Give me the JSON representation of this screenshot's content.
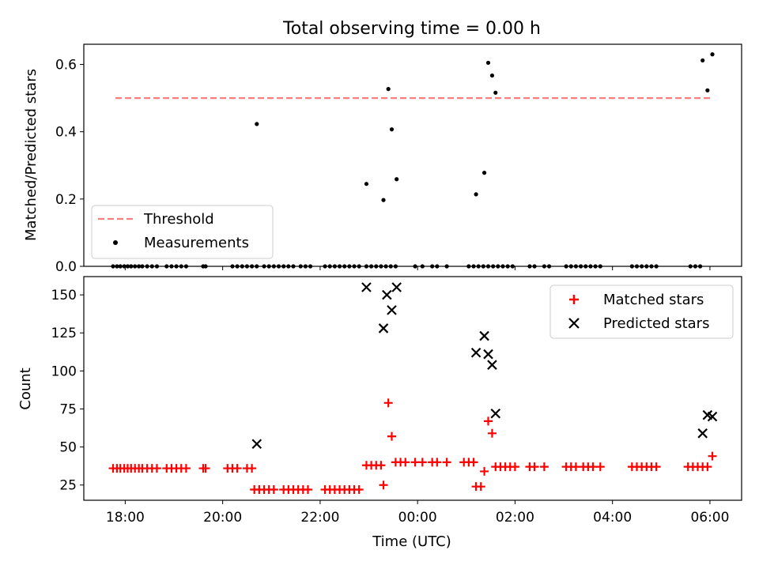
{
  "title": "Total observing time = 0.00 h",
  "chart_data": [
    {
      "type": "scatter",
      "panel": "top",
      "ylabel": "Matched/Predicted stars",
      "xlabel": "",
      "ylim": [
        0,
        0.66
      ],
      "yticks": [
        0.0,
        0.2,
        0.4,
        0.6
      ],
      "ytick_labels": [
        "0.0",
        "0.2",
        "0.4",
        "0.6"
      ],
      "threshold": {
        "name": "Threshold",
        "value": 0.5,
        "x_start": -0.2,
        "x_end": 12.05,
        "color": "#f87f7f",
        "style": "dashed"
      },
      "series": [
        {
          "name": "Measurements",
          "color": "#000000",
          "marker": "dot",
          "points": [
            [
              -0.25,
              0
            ],
            [
              -0.17,
              0
            ],
            [
              -0.1,
              0
            ],
            [
              -0.02,
              0
            ],
            [
              0.05,
              0
            ],
            [
              0.12,
              0
            ],
            [
              0.2,
              0
            ],
            [
              0.28,
              0
            ],
            [
              0.35,
              0
            ],
            [
              0.45,
              0
            ],
            [
              0.55,
              0
            ],
            [
              0.65,
              0
            ],
            [
              0.85,
              0
            ],
            [
              0.95,
              0
            ],
            [
              1.05,
              0
            ],
            [
              1.15,
              0
            ],
            [
              1.25,
              0
            ],
            [
              1.6,
              0
            ],
            [
              1.65,
              0
            ],
            [
              2.2,
              0
            ],
            [
              2.3,
              0
            ],
            [
              2.4,
              0
            ],
            [
              2.5,
              0
            ],
            [
              2.6,
              0
            ],
            [
              2.7,
              0
            ],
            [
              2.85,
              0
            ],
            [
              2.95,
              0
            ],
            [
              3.05,
              0
            ],
            [
              3.15,
              0
            ],
            [
              3.25,
              0
            ],
            [
              3.35,
              0
            ],
            [
              3.45,
              0
            ],
            [
              3.6,
              0
            ],
            [
              3.7,
              0
            ],
            [
              3.8,
              0
            ],
            [
              4.1,
              0
            ],
            [
              4.2,
              0
            ],
            [
              4.3,
              0
            ],
            [
              4.4,
              0
            ],
            [
              4.5,
              0
            ],
            [
              4.6,
              0
            ],
            [
              4.7,
              0
            ],
            [
              4.8,
              0
            ],
            [
              4.95,
              0
            ],
            [
              5.05,
              0
            ],
            [
              5.15,
              0
            ],
            [
              5.25,
              0
            ],
            [
              5.35,
              0
            ],
            [
              5.45,
              0
            ],
            [
              5.55,
              0
            ],
            [
              5.95,
              0
            ],
            [
              6.1,
              0
            ],
            [
              6.3,
              0
            ],
            [
              6.4,
              0
            ],
            [
              6.6,
              0
            ],
            [
              7.05,
              0
            ],
            [
              7.15,
              0
            ],
            [
              7.25,
              0
            ],
            [
              7.35,
              0
            ],
            [
              7.45,
              0
            ],
            [
              7.55,
              0
            ],
            [
              7.65,
              0
            ],
            [
              7.75,
              0
            ],
            [
              7.85,
              0
            ],
            [
              7.95,
              0
            ],
            [
              8.3,
              0
            ],
            [
              8.4,
              0
            ],
            [
              8.6,
              0
            ],
            [
              8.7,
              0
            ],
            [
              9.05,
              0
            ],
            [
              9.15,
              0
            ],
            [
              9.25,
              0
            ],
            [
              9.35,
              0
            ],
            [
              9.45,
              0
            ],
            [
              9.55,
              0
            ],
            [
              9.65,
              0
            ],
            [
              9.75,
              0
            ],
            [
              10.4,
              0
            ],
            [
              10.5,
              0
            ],
            [
              10.6,
              0
            ],
            [
              10.7,
              0
            ],
            [
              10.8,
              0
            ],
            [
              10.9,
              0
            ],
            [
              11.6,
              0
            ],
            [
              11.7,
              0
            ],
            [
              11.8,
              0
            ],
            [
              2.7,
              0.423
            ],
            [
              4.95,
              0.245
            ],
            [
              5.3,
              0.197
            ],
            [
              5.4,
              0.527
            ],
            [
              5.47,
              0.407
            ],
            [
              5.57,
              0.259
            ],
            [
              7.2,
              0.214
            ],
            [
              7.37,
              0.278
            ],
            [
              7.45,
              0.605
            ],
            [
              7.53,
              0.567
            ],
            [
              7.6,
              0.516
            ],
            [
              11.85,
              0.612
            ],
            [
              11.95,
              0.523
            ],
            [
              12.05,
              0.63
            ]
          ]
        }
      ],
      "legend": {
        "placement": "lower-left",
        "entries": [
          "Threshold",
          "Measurements"
        ]
      }
    },
    {
      "type": "scatter",
      "panel": "bottom",
      "ylabel": "Count",
      "xlabel": "Time (UTC)",
      "ylim": [
        15,
        162
      ],
      "yticks": [
        25,
        50,
        75,
        100,
        125,
        150
      ],
      "ytick_labels": [
        "25",
        "50",
        "75",
        "100",
        "125",
        "150"
      ],
      "xlim": [
        -0.85,
        12.65
      ],
      "xticks": [
        0,
        2,
        4,
        6,
        8,
        10,
        12
      ],
      "xtick_labels": [
        "18:00",
        "20:00",
        "22:00",
        "00:00",
        "02:00",
        "04:00",
        "06:00"
      ],
      "series": [
        {
          "name": "Matched stars",
          "color": "#ff0000",
          "marker": "plus",
          "points": [
            [
              -0.25,
              36
            ],
            [
              -0.17,
              36
            ],
            [
              -0.1,
              36
            ],
            [
              -0.02,
              36
            ],
            [
              0.05,
              36
            ],
            [
              0.12,
              36
            ],
            [
              0.2,
              36
            ],
            [
              0.28,
              36
            ],
            [
              0.35,
              36
            ],
            [
              0.45,
              36
            ],
            [
              0.55,
              36
            ],
            [
              0.65,
              36
            ],
            [
              0.85,
              36
            ],
            [
              0.95,
              36
            ],
            [
              1.05,
              36
            ],
            [
              1.15,
              36
            ],
            [
              1.25,
              36
            ],
            [
              1.6,
              36
            ],
            [
              1.65,
              36
            ],
            [
              2.1,
              36
            ],
            [
              2.2,
              36
            ],
            [
              2.3,
              36
            ],
            [
              2.5,
              36
            ],
            [
              2.6,
              36
            ],
            [
              2.65,
              22
            ],
            [
              2.75,
              22
            ],
            [
              2.85,
              22
            ],
            [
              2.95,
              22
            ],
            [
              3.05,
              22
            ],
            [
              3.25,
              22
            ],
            [
              3.35,
              22
            ],
            [
              3.45,
              22
            ],
            [
              3.55,
              22
            ],
            [
              3.65,
              22
            ],
            [
              3.75,
              22
            ],
            [
              4.1,
              22
            ],
            [
              4.2,
              22
            ],
            [
              4.3,
              22
            ],
            [
              4.4,
              22
            ],
            [
              4.5,
              22
            ],
            [
              4.6,
              22
            ],
            [
              4.7,
              22
            ],
            [
              4.8,
              22
            ],
            [
              4.95,
              38
            ],
            [
              5.05,
              38
            ],
            [
              5.15,
              38
            ],
            [
              5.25,
              38
            ],
            [
              5.3,
              25
            ],
            [
              5.4,
              79
            ],
            [
              5.47,
              57
            ],
            [
              5.55,
              40
            ],
            [
              5.65,
              40
            ],
            [
              5.75,
              40
            ],
            [
              5.95,
              40
            ],
            [
              6.1,
              40
            ],
            [
              6.3,
              40
            ],
            [
              6.4,
              40
            ],
            [
              6.6,
              40
            ],
            [
              6.95,
              40
            ],
            [
              7.05,
              40
            ],
            [
              7.15,
              40
            ],
            [
              7.2,
              24
            ],
            [
              7.3,
              24
            ],
            [
              7.37,
              34
            ],
            [
              7.45,
              67
            ],
            [
              7.53,
              59
            ],
            [
              7.6,
              37
            ],
            [
              7.7,
              37
            ],
            [
              7.8,
              37
            ],
            [
              7.9,
              37
            ],
            [
              8.0,
              37
            ],
            [
              8.3,
              37
            ],
            [
              8.4,
              37
            ],
            [
              8.6,
              37
            ],
            [
              9.05,
              37
            ],
            [
              9.15,
              37
            ],
            [
              9.25,
              37
            ],
            [
              9.4,
              37
            ],
            [
              9.5,
              37
            ],
            [
              9.6,
              37
            ],
            [
              9.75,
              37
            ],
            [
              10.4,
              37
            ],
            [
              10.5,
              37
            ],
            [
              10.6,
              37
            ],
            [
              10.7,
              37
            ],
            [
              10.8,
              37
            ],
            [
              10.9,
              37
            ],
            [
              11.55,
              37
            ],
            [
              11.65,
              37
            ],
            [
              11.75,
              37
            ],
            [
              11.85,
              37
            ],
            [
              11.95,
              37
            ],
            [
              12.05,
              44
            ]
          ]
        },
        {
          "name": "Predicted stars",
          "color": "#000000",
          "marker": "x",
          "points": [
            [
              2.7,
              52
            ],
            [
              4.95,
              155
            ],
            [
              5.3,
              128
            ],
            [
              5.37,
              150
            ],
            [
              5.47,
              140
            ],
            [
              5.57,
              155
            ],
            [
              7.2,
              112
            ],
            [
              7.37,
              123
            ],
            [
              7.45,
              111
            ],
            [
              7.53,
              104
            ],
            [
              7.6,
              72
            ],
            [
              11.85,
              59
            ],
            [
              11.95,
              71
            ],
            [
              12.05,
              70
            ]
          ]
        }
      ],
      "legend": {
        "placement": "upper-right",
        "entries": [
          "Matched stars",
          "Predicted stars"
        ]
      }
    }
  ]
}
